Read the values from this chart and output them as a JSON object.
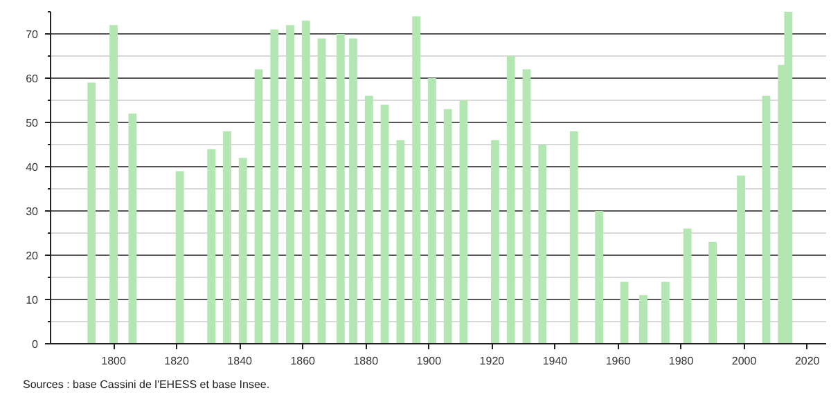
{
  "chart_data": {
    "type": "bar",
    "color": "#b3e6b3",
    "x": [
      1793,
      1800,
      1806,
      1821,
      1831,
      1836,
      1841,
      1846,
      1851,
      1856,
      1861,
      1866,
      1872,
      1876,
      1881,
      1886,
      1891,
      1896,
      1901,
      1906,
      1911,
      1921,
      1926,
      1931,
      1936,
      1946,
      1954,
      1962,
      1968,
      1975,
      1982,
      1990,
      1999,
      2007,
      2012,
      2014
    ],
    "values": [
      59,
      72,
      52,
      39,
      44,
      48,
      42,
      62,
      71,
      72,
      73,
      69,
      70,
      69,
      56,
      54,
      46,
      74,
      60,
      53,
      55,
      46,
      65,
      62,
      45,
      48,
      30,
      14,
      11,
      14,
      26,
      23,
      38,
      56,
      63,
      75
    ],
    "xlim": [
      1780,
      2026
    ],
    "xticks": [
      1800,
      1820,
      1840,
      1860,
      1880,
      1900,
      1920,
      1940,
      1960,
      1980,
      2000,
      2020
    ],
    "ylim": [
      0,
      75
    ],
    "yticks": [
      0,
      {
        "value": 5,
        "label": null
      },
      10,
      {
        "value": 15,
        "label": null
      },
      20,
      {
        "value": 25,
        "label": null
      },
      30,
      {
        "value": 35,
        "label": null
      },
      40,
      {
        "value": 45,
        "label": null
      },
      50,
      {
        "value": 55,
        "label": null
      },
      60,
      {
        "value": 65,
        "label": null
      },
      70,
      {
        "value": 75,
        "label": null
      }
    ],
    "grid": "y",
    "annotations": [
      "Sources : base Cassini de l'EHESS et base Insee."
    ]
  }
}
